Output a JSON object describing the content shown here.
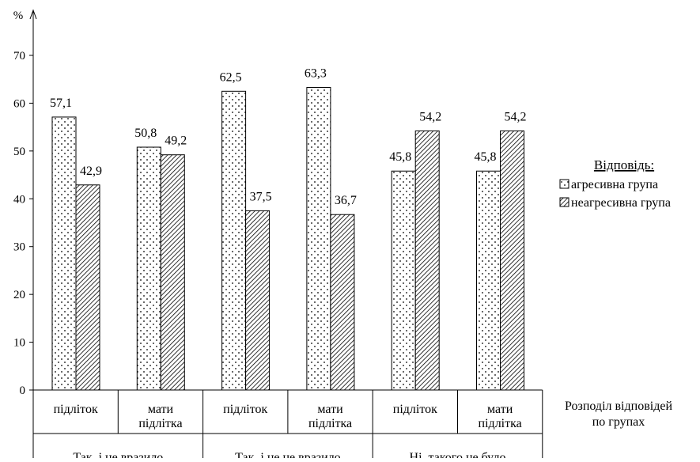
{
  "chart_data": {
    "type": "bar",
    "y_unit": "%",
    "ylim": [
      0,
      70
    ],
    "yticks": [
      0,
      10,
      20,
      30,
      40,
      50,
      60,
      70
    ],
    "categories": [
      {
        "label": [
          "підліток"
        ],
        "group": "Так, і це вразило"
      },
      {
        "label": [
          "мати",
          "підлітка"
        ],
        "group": "Так, і це вразило"
      },
      {
        "label": [
          "підліток"
        ],
        "group": "Так, і це не вразило"
      },
      {
        "label": [
          "мати",
          "підлітка"
        ],
        "group": "Так, і це не вразило"
      },
      {
        "label": [
          "підліток"
        ],
        "group": "Ні, такого не було"
      },
      {
        "label": [
          "мати",
          "підлітка"
        ],
        "group": "Ні, такого не було"
      }
    ],
    "groups": [
      "Так, і це вразило",
      "Так, і це не вразило",
      "Ні, такого не було"
    ],
    "axis_caption": [
      "Розподіл відповідей",
      "по групах"
    ],
    "series": [
      {
        "name": "агресивна група",
        "pattern": "dots",
        "values": [
          57.1,
          50.8,
          62.5,
          63.3,
          45.8,
          45.8
        ],
        "labels": [
          "57,1",
          "50,8",
          "62,5",
          "63,3",
          "45,8",
          "45,8"
        ]
      },
      {
        "name": "неагресивна група",
        "pattern": "diagonal-hatch",
        "values": [
          42.9,
          49.2,
          37.5,
          36.7,
          54.2,
          54.2
        ],
        "labels": [
          "42,9",
          "49,2",
          "37,5",
          "36,7",
          "54,2",
          "54,2"
        ]
      }
    ],
    "legend": {
      "title": "Відповідь:",
      "position": "right"
    },
    "grid": false,
    "colors": {
      "bar_stroke": "#000000",
      "background": "#ffffff"
    }
  }
}
